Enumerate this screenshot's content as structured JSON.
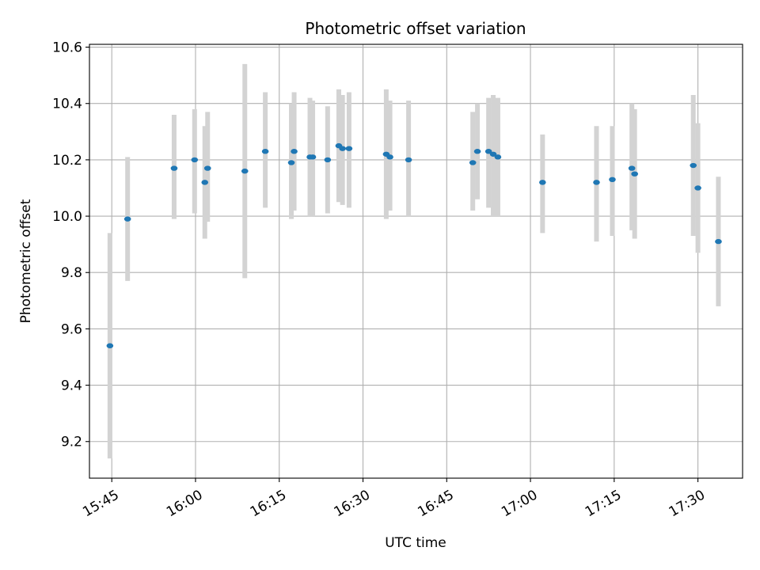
{
  "chart_data": {
    "type": "scatter",
    "title": "Photometric offset variation",
    "xlabel": "UTC time",
    "ylabel": "Photometric offset",
    "x_is_time": true,
    "xlim": [
      "15:41",
      "17:38"
    ],
    "ylim": [
      9.07,
      10.61
    ],
    "yticks": [
      9.2,
      9.4,
      9.6,
      9.8,
      10.0,
      10.2,
      10.4,
      10.6
    ],
    "ytick_labels": [
      "9.2",
      "9.4",
      "9.6",
      "9.8",
      "10.0",
      "10.2",
      "10.4",
      "10.6"
    ],
    "xticks": [
      "15:45",
      "16:00",
      "16:15",
      "16:30",
      "16:45",
      "17:00",
      "17:15",
      "17:30"
    ],
    "grid": true,
    "colors": {
      "point": "#1f77b4",
      "errorbar": "#d3d3d3",
      "grid": "#b0b0b0"
    },
    "series": [
      {
        "points": [
          {
            "t": "15:44:40",
            "y": 9.54,
            "lo": 9.14,
            "hi": 9.94
          },
          {
            "t": "15:47:50",
            "y": 9.99,
            "lo": 9.77,
            "hi": 10.21
          },
          {
            "t": "15:56:10",
            "y": 10.17,
            "lo": 9.99,
            "hi": 10.36
          },
          {
            "t": "15:59:50",
            "y": 10.2,
            "lo": 10.01,
            "hi": 10.38
          },
          {
            "t": "16:01:40",
            "y": 10.12,
            "lo": 9.92,
            "hi": 10.32
          },
          {
            "t": "16:02:10",
            "y": 10.17,
            "lo": 9.98,
            "hi": 10.37
          },
          {
            "t": "16:08:50",
            "y": 10.16,
            "lo": 9.78,
            "hi": 10.54
          },
          {
            "t": "16:12:30",
            "y": 10.23,
            "lo": 10.03,
            "hi": 10.44
          },
          {
            "t": "16:17:10",
            "y": 10.19,
            "lo": 9.99,
            "hi": 10.4
          },
          {
            "t": "16:17:40",
            "y": 10.23,
            "lo": 10.02,
            "hi": 10.44
          },
          {
            "t": "16:20:30",
            "y": 10.21,
            "lo": 10.0,
            "hi": 10.42
          },
          {
            "t": "16:21:00",
            "y": 10.21,
            "lo": 10.0,
            "hi": 10.41
          },
          {
            "t": "16:23:40",
            "y": 10.2,
            "lo": 10.01,
            "hi": 10.39
          },
          {
            "t": "16:25:40",
            "y": 10.25,
            "lo": 10.05,
            "hi": 10.45
          },
          {
            "t": "16:26:20",
            "y": 10.24,
            "lo": 10.04,
            "hi": 10.43
          },
          {
            "t": "16:27:30",
            "y": 10.24,
            "lo": 10.03,
            "hi": 10.44
          },
          {
            "t": "16:34:10",
            "y": 10.22,
            "lo": 9.99,
            "hi": 10.45
          },
          {
            "t": "16:34:50",
            "y": 10.21,
            "lo": 10.02,
            "hi": 10.41
          },
          {
            "t": "16:38:10",
            "y": 10.2,
            "lo": 10.0,
            "hi": 10.41
          },
          {
            "t": "16:49:40",
            "y": 10.19,
            "lo": 10.02,
            "hi": 10.37
          },
          {
            "t": "16:50:30",
            "y": 10.23,
            "lo": 10.06,
            "hi": 10.4
          },
          {
            "t": "16:52:30",
            "y": 10.23,
            "lo": 10.03,
            "hi": 10.42
          },
          {
            "t": "16:53:20",
            "y": 10.22,
            "lo": 10.0,
            "hi": 10.43
          },
          {
            "t": "16:54:10",
            "y": 10.21,
            "lo": 10.0,
            "hi": 10.42
          },
          {
            "t": "17:02:10",
            "y": 10.12,
            "lo": 9.94,
            "hi": 10.29
          },
          {
            "t": "17:11:50",
            "y": 10.12,
            "lo": 9.91,
            "hi": 10.32
          },
          {
            "t": "17:14:40",
            "y": 10.13,
            "lo": 9.93,
            "hi": 10.32
          },
          {
            "t": "17:18:10",
            "y": 10.17,
            "lo": 9.95,
            "hi": 10.4
          },
          {
            "t": "17:18:40",
            "y": 10.15,
            "lo": 9.92,
            "hi": 10.38
          },
          {
            "t": "17:29:10",
            "y": 10.18,
            "lo": 9.93,
            "hi": 10.43
          },
          {
            "t": "17:30:00",
            "y": 10.1,
            "lo": 9.87,
            "hi": 10.33
          },
          {
            "t": "17:33:40",
            "y": 9.91,
            "lo": 9.68,
            "hi": 10.14
          }
        ]
      }
    ]
  }
}
